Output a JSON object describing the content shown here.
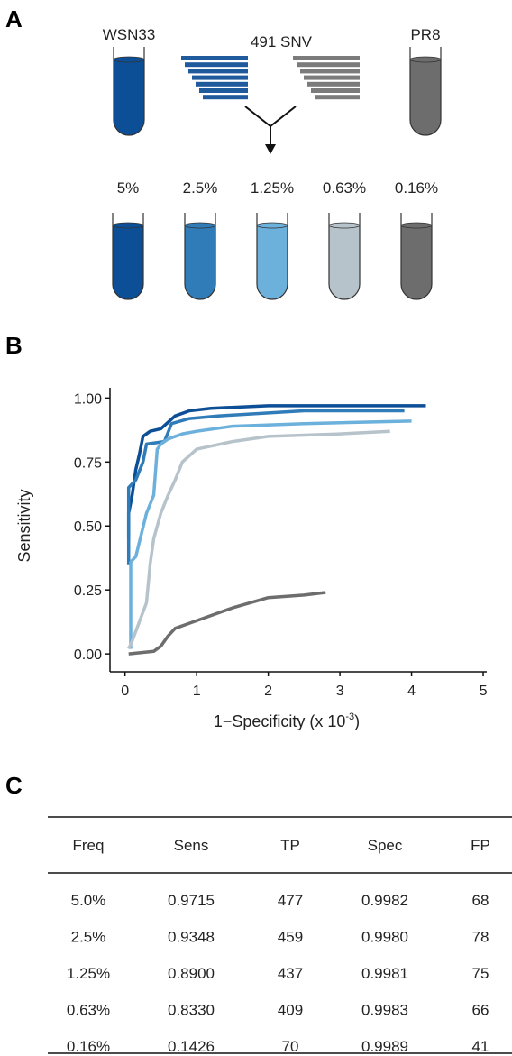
{
  "panels": [
    "A",
    "B",
    "C"
  ],
  "diagram": {
    "left_label": "WSN33",
    "middle_label": "491 SNV",
    "right_label": "PR8",
    "mixes": [
      "5%",
      "2.5%",
      "1.25%",
      "0.63%",
      "0.16%"
    ]
  },
  "chart_data": {
    "type": "line",
    "ylabel": "Sensitivity",
    "xlabel": "1−Specificity (x 10",
    "xlabel_sup": "-3",
    "xlabel_end": ")",
    "xlim": [
      -0.21,
      5.05
    ],
    "ylim": [
      -0.07,
      1.04
    ],
    "xticks": [
      0,
      1,
      2,
      3,
      4,
      5
    ],
    "yticks": [
      {
        "value": 0,
        "label": "0.00"
      },
      0.25,
      {
        "value": 0.5,
        "label": "0.50"
      },
      0.75,
      {
        "value": 1,
        "label": "1.00"
      }
    ],
    "series": [
      {
        "color": "#0d4f97",
        "x": [
          0.05,
          0.05,
          0.1,
          0.15,
          0.2,
          0.25,
          0.35,
          0.5,
          0.7,
          0.9,
          1.2,
          2.0,
          4.2
        ],
        "values": [
          0.45,
          0.55,
          0.62,
          0.72,
          0.78,
          0.85,
          0.87,
          0.88,
          0.93,
          0.95,
          0.96,
          0.97,
          0.97
        ]
      },
      {
        "color": "#2f7cb9",
        "x": [
          0.05,
          0.05,
          0.15,
          0.25,
          0.3,
          0.55,
          0.65,
          0.9,
          1.3,
          2.5,
          3.9
        ],
        "values": [
          0.35,
          0.65,
          0.68,
          0.75,
          0.82,
          0.83,
          0.9,
          0.92,
          0.93,
          0.95,
          0.95
        ]
      },
      {
        "color": "#6cb0dc",
        "x": [
          0.08,
          0.08,
          0.15,
          0.3,
          0.4,
          0.45,
          0.5,
          0.6,
          0.8,
          1.0,
          1.5,
          2.5,
          4.0
        ],
        "values": [
          0.02,
          0.36,
          0.38,
          0.55,
          0.62,
          0.8,
          0.82,
          0.84,
          0.86,
          0.87,
          0.89,
          0.9,
          0.91
        ]
      },
      {
        "color": "#b7c3cb",
        "x": [
          0.05,
          0.1,
          0.3,
          0.35,
          0.4,
          0.5,
          0.6,
          0.7,
          0.8,
          1.0,
          1.5,
          2.0,
          3.0,
          3.7
        ],
        "values": [
          0.02,
          0.05,
          0.2,
          0.35,
          0.45,
          0.55,
          0.62,
          0.68,
          0.75,
          0.8,
          0.83,
          0.85,
          0.86,
          0.87
        ]
      },
      {
        "color": "#6d6d6d",
        "x": [
          0.05,
          0.4,
          0.5,
          0.6,
          0.7,
          0.9,
          1.2,
          1.5,
          2.0,
          2.5,
          2.8
        ],
        "values": [
          0,
          0.01,
          0.03,
          0.07,
          0.1,
          0.12,
          0.15,
          0.18,
          0.22,
          0.23,
          0.24
        ]
      }
    ]
  },
  "table": {
    "header": [
      "Freq",
      "Sens",
      "TP",
      "Spec",
      "FP"
    ],
    "rows": [
      [
        "5.0%",
        "0.9715",
        "477",
        "0.9982",
        "68"
      ],
      [
        "2.5%",
        "0.9348",
        "459",
        "0.9980",
        "78"
      ],
      [
        "1.25%",
        "0.8900",
        "437",
        "0.9981",
        "75"
      ],
      [
        "0.63%",
        "0.8330",
        "409",
        "0.9983",
        "66"
      ],
      [
        "0.16%",
        "0.1426",
        "70",
        "0.9989",
        "41"
      ]
    ]
  }
}
